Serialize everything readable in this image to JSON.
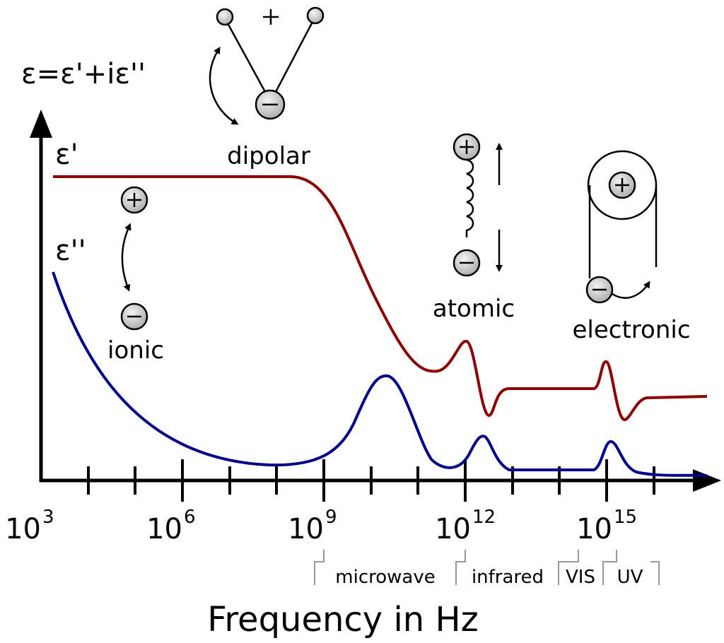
{
  "labels": {
    "permittivity": "ε=ε'+iε''",
    "real_part": "ε'",
    "imaginary_part": "ε''",
    "dipolar": "dipolar",
    "ionic": "ionic",
    "atomic": "atomic",
    "electronic": "electronic"
  },
  "x_axis": {
    "title": "Frequency in Hz",
    "ticks": [
      {
        "base": "10",
        "exponent": "3"
      },
      {
        "base": "10",
        "exponent": "6"
      },
      {
        "base": "10",
        "exponent": "9"
      },
      {
        "base": "10",
        "exponent": "12"
      },
      {
        "base": "10",
        "exponent": "15"
      }
    ]
  },
  "bands": [
    "microwave",
    "infrared",
    "VIS",
    "UV"
  ]
}
